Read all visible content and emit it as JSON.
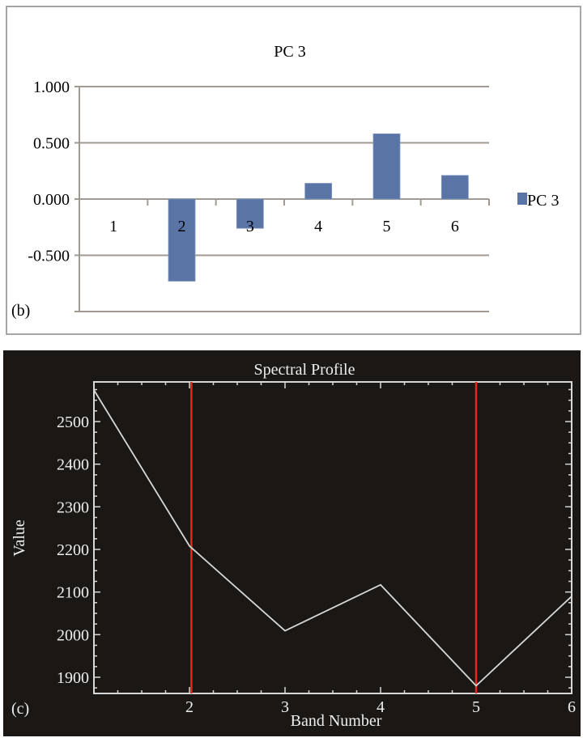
{
  "chart_data": [
    {
      "type": "bar",
      "panel_label": "(b)",
      "title": "PC 3",
      "categories": [
        "1",
        "2",
        "3",
        "4",
        "5",
        "6"
      ],
      "series": [
        {
          "name": "PC 3",
          "values": [
            0.0,
            -0.73,
            -0.26,
            0.14,
            0.58,
            0.21
          ],
          "color": "#5b74a6"
        }
      ],
      "yticks": [
        "1.000",
        "0.500",
        "0.000",
        "-0.500"
      ],
      "ylim": [
        -1.0,
        1.0
      ],
      "grid": true,
      "legend": "right",
      "xlabel": "",
      "ylabel": ""
    },
    {
      "type": "line",
      "panel_label": "(c)",
      "title": "Spectral Profile",
      "xlabel": "Band Number",
      "ylabel": "Value",
      "x": [
        1,
        2,
        3,
        4,
        5,
        6
      ],
      "values": [
        2574,
        2208,
        2009,
        2117,
        1880,
        2090
      ],
      "xticks": [
        "2",
        "3",
        "4",
        "5",
        "6"
      ],
      "yticks": [
        "2500",
        "2400",
        "2300",
        "2200",
        "2100",
        "2000",
        "1900"
      ],
      "xlim": [
        1,
        6
      ],
      "ylim": [
        1862,
        2593
      ],
      "markers_x": [
        2.02,
        5.0
      ],
      "background": "#1a1714",
      "line_color": "#d8d8d8",
      "marker_color": "#e8251f",
      "grid": false
    }
  ]
}
